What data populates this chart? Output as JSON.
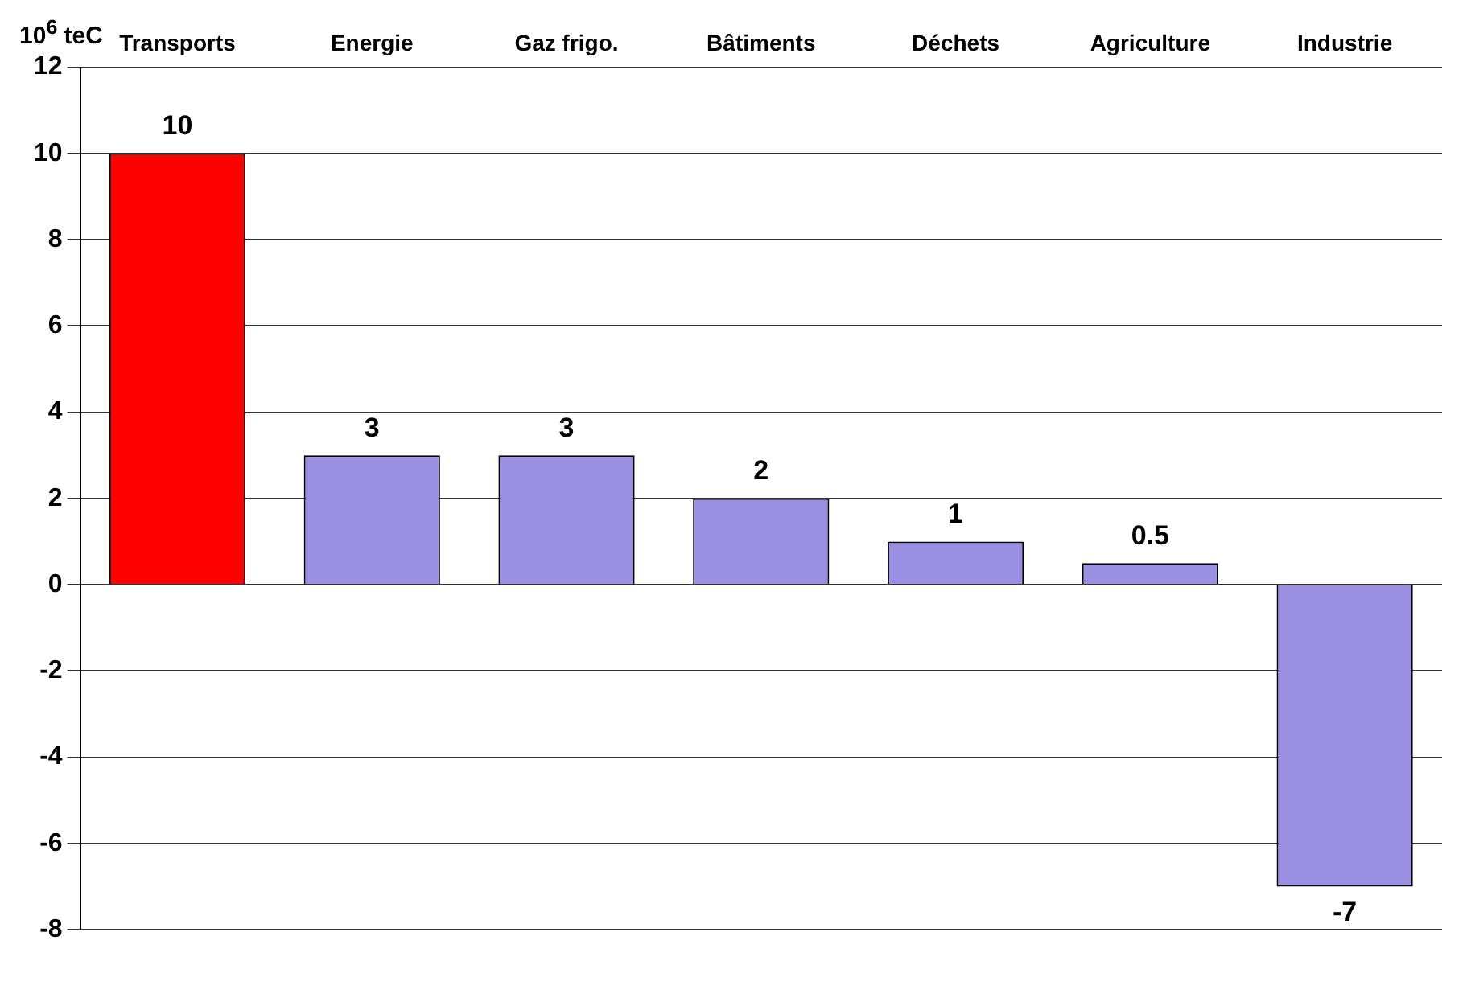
{
  "chart_data": {
    "type": "bar",
    "ylabel": "10$^{6}$ teC",
    "categories": [
      "Transports",
      "Energie",
      "Gaz frigo.",
      "Bâtiments",
      "Déchets",
      "Agriculture",
      "Industrie"
    ],
    "values": [
      10,
      3,
      3,
      2,
      1,
      0.5,
      -7
    ],
    "colors": [
      "#ff0000",
      "#9b8fe3",
      "#9b8fe3",
      "#9b8fe3",
      "#9b8fe3",
      "#9b8fe3",
      "#9b8fe3"
    ],
    "ylim": [
      -8,
      12
    ],
    "yticks": [
      -8,
      -6,
      -4,
      -2,
      0,
      2,
      4,
      6,
      8,
      10,
      12
    ],
    "grid": "y",
    "legend": false,
    "data_labels": true
  }
}
